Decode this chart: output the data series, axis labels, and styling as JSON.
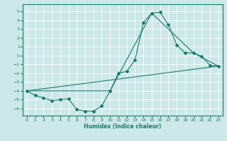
{
  "xlabel": "Humidex (Indice chaleur)",
  "bg_color": "#cce8e8",
  "grid_color": "#ffffff",
  "line_color": "#1a7a6e",
  "xlim": [
    -0.5,
    23.5
  ],
  "ylim": [
    -6.8,
    5.8
  ],
  "xticks": [
    0,
    1,
    2,
    3,
    4,
    5,
    6,
    7,
    8,
    9,
    10,
    11,
    12,
    13,
    14,
    15,
    16,
    17,
    18,
    19,
    20,
    21,
    22,
    23
  ],
  "yticks": [
    -6,
    -5,
    -4,
    -3,
    -2,
    -1,
    0,
    1,
    2,
    3,
    4,
    5
  ],
  "series1_x": [
    0,
    1,
    2,
    3,
    4,
    5,
    6,
    7,
    8,
    9,
    10,
    11,
    12,
    13,
    14,
    15,
    16,
    17,
    18,
    19,
    20,
    21,
    22,
    23
  ],
  "series1_y": [
    -4.0,
    -4.5,
    -4.8,
    -5.1,
    -5.0,
    -4.9,
    -6.1,
    -6.3,
    -6.3,
    -5.7,
    -4.0,
    -2.0,
    -1.8,
    -0.5,
    3.7,
    4.8,
    4.9,
    3.5,
    1.2,
    0.3,
    0.3,
    -0.1,
    -1.1,
    -1.2
  ],
  "series2_x": [
    0,
    23
  ],
  "series2_y": [
    -4.0,
    -1.2
  ],
  "series3_x": [
    0,
    10,
    15,
    20,
    23
  ],
  "series3_y": [
    -4.0,
    -4.0,
    4.8,
    0.3,
    -1.2
  ],
  "marker_size": 2.0,
  "line_width": 0.8,
  "tick_fontsize": 4.5,
  "xlabel_fontsize": 5.5
}
